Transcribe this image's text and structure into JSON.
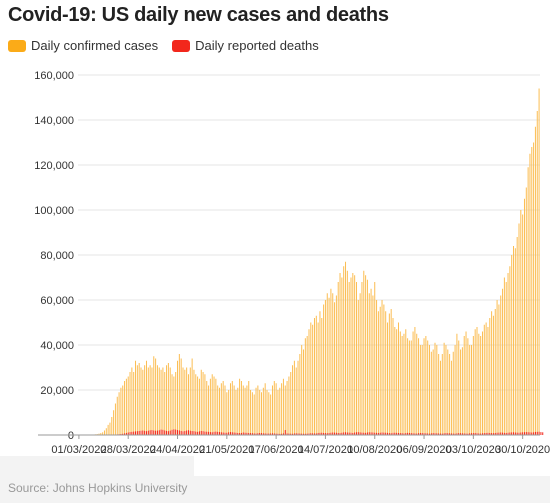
{
  "title": "Covid-19: US daily new cases and deaths",
  "source": "Source: Johns Hopkins University",
  "chart_data": {
    "type": "bar",
    "title": "Covid-19: US daily new cases and deaths",
    "xlabel": "",
    "ylabel": "",
    "ylim": [
      0,
      160000
    ],
    "yticks": [
      0,
      20000,
      40000,
      60000,
      80000,
      100000,
      120000,
      140000,
      160000
    ],
    "ytick_labels": [
      "0",
      "20,000",
      "40,000",
      "60,000",
      "80,000",
      "100,000",
      "120,000",
      "140,000",
      "160,000"
    ],
    "xtick_labels": [
      "01/03/2020",
      "28/03/2020",
      "24/04/2020",
      "21/05/2020",
      "17/06/2020",
      "14/07/2020",
      "10/08/2020",
      "06/09/2020",
      "03/10/2020",
      "30/10/2020"
    ],
    "start_date": "2020-03-01",
    "end_date": "2020-11-13",
    "legend_position": "top-left",
    "grid": true,
    "series": [
      {
        "name": "Daily confirmed cases",
        "color": "#fbbd52",
        "values": [
          0,
          0,
          0,
          0,
          20,
          40,
          80,
          150,
          200,
          300,
          400,
          600,
          900,
          1200,
          2000,
          3000,
          4500,
          5500,
          8000,
          11000,
          14000,
          17000,
          19000,
          21000,
          22000,
          24000,
          25000,
          26000,
          28000,
          30000,
          28000,
          33000,
          31000,
          32000,
          30000,
          29000,
          31000,
          33000,
          30000,
          31000,
          30000,
          35000,
          34000,
          31000,
          30000,
          29000,
          30000,
          28000,
          31000,
          32000,
          30000,
          27000,
          26000,
          28000,
          33000,
          36000,
          34000,
          30000,
          29000,
          30000,
          27000,
          30000,
          34000,
          29000,
          27000,
          26000,
          25000,
          29000,
          28000,
          27000,
          24000,
          22000,
          25000,
          27000,
          26000,
          25000,
          22000,
          21000,
          23000,
          24000,
          22000,
          19000,
          20000,
          23000,
          24000,
          22000,
          20000,
          21000,
          25000,
          24000,
          22000,
          21000,
          22000,
          24000,
          20000,
          19000,
          18000,
          21000,
          22000,
          20000,
          19000,
          21000,
          23000,
          20000,
          19000,
          18000,
          22000,
          24000,
          23000,
          20000,
          21000,
          23000,
          25000,
          22000,
          24000,
          26000,
          28000,
          31000,
          33000,
          30000,
          33000,
          36000,
          40000,
          38000,
          43000,
          44000,
          47000,
          50000,
          49000,
          52000,
          53000,
          50000,
          55000,
          52000,
          58000,
          60000,
          63000,
          61000,
          65000,
          63000,
          59000,
          62000,
          68000,
          72000,
          70000,
          75000,
          77000,
          73000,
          68000,
          70000,
          72000,
          71000,
          68000,
          60000,
          63000,
          68000,
          73000,
          71000,
          69000,
          63000,
          65000,
          62000,
          68000,
          60000,
          55000,
          57000,
          60000,
          58000,
          55000,
          50000,
          54000,
          56000,
          52000,
          48000,
          47000,
          50000,
          46000,
          44000,
          45000,
          47000,
          43000,
          42000,
          42000,
          46000,
          48000,
          45000,
          43000,
          40000,
          40000,
          43000,
          44000,
          42000,
          40000,
          37000,
          38000,
          41000,
          40000,
          36000,
          33000,
          36000,
          41000,
          40000,
          38000,
          36000,
          33000,
          37000,
          40000,
          45000,
          42000,
          38000,
          39000,
          44000,
          46000,
          43000,
          40000,
          40000,
          44000,
          47000,
          48000,
          45000,
          44000,
          46000,
          49000,
          50000,
          48000,
          52000,
          55000,
          53000,
          56000,
          60000,
          58000,
          62000,
          65000,
          70000,
          68000,
          72000,
          75000,
          80000,
          84000,
          83000,
          88000,
          94000,
          100000,
          98000,
          105000,
          110000,
          119000,
          125000,
          128000,
          130000,
          137000,
          144000,
          154000
        ],
        "peak_label_dates": []
      },
      {
        "name": "Daily reported deaths",
        "color": "#f2271c",
        "values": [
          0,
          0,
          0,
          0,
          0,
          0,
          0,
          0,
          0,
          1,
          2,
          4,
          6,
          10,
          15,
          20,
          40,
          60,
          90,
          120,
          180,
          250,
          350,
          450,
          550,
          700,
          900,
          1100,
          1300,
          1400,
          1500,
          1600,
          1700,
          1800,
          1900,
          2000,
          1850,
          1700,
          1900,
          2100,
          2200,
          2000,
          1900,
          1950,
          2100,
          2400,
          2300,
          2000,
          1800,
          1700,
          1950,
          2300,
          2500,
          2400,
          2200,
          2050,
          1800,
          1600,
          1750,
          2000,
          2100,
          1900,
          1750,
          1700,
          1500,
          1400,
          1600,
          1800,
          1700,
          1500,
          1450,
          1400,
          1300,
          1200,
          1400,
          1500,
          1400,
          1300,
          1200,
          1100,
          1000,
          1000,
          1200,
          1300,
          1200,
          1100,
          1000,
          900,
          850,
          900,
          1100,
          1000,
          950,
          900,
          850,
          800,
          700,
          650,
          800,
          900,
          850,
          750,
          700,
          650,
          650,
          700,
          750,
          700,
          600,
          550,
          500,
          550,
          700,
          2200,
          700,
          650,
          600,
          550,
          700,
          750,
          700,
          650,
          600,
          550,
          550,
          600,
          700,
          800,
          750,
          700,
          700,
          900,
          950,
          1000,
          900,
          850,
          800,
          900,
          1000,
          1100,
          1050,
          1000,
          900,
          850,
          1000,
          1150,
          1200,
          1100,
          1050,
          1000,
          900,
          1100,
          1200,
          1250,
          1150,
          1050,
          1000,
          950,
          1100,
          1200,
          1150,
          1100,
          1000,
          950,
          900,
          1000,
          1100,
          1050,
          1000,
          950,
          850,
          800,
          950,
          1000,
          950,
          900,
          850,
          800,
          700,
          850,
          950,
          900,
          850,
          750,
          700,
          650,
          800,
          900,
          850,
          800,
          750,
          700,
          600,
          750,
          850,
          800,
          750,
          700,
          650,
          600,
          750,
          850,
          800,
          750,
          700,
          650,
          600,
          750,
          850,
          800,
          750,
          700,
          650,
          600,
          750,
          800,
          850,
          900,
          800,
          700,
          650,
          750,
          850,
          900,
          950,
          900,
          850,
          800,
          900,
          1000,
          1050,
          1100,
          1050,
          950,
          900,
          1000,
          1100,
          1150,
          1200,
          1100,
          1050,
          1000,
          1100,
          1200,
          1250,
          1300,
          1250,
          1200,
          1100,
          1200,
          1350,
          1400,
          1450,
          1300,
          1200
        ]
      }
    ]
  }
}
